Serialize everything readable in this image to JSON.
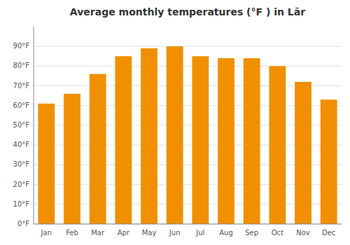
{
  "chart_data": {
    "type": "bar",
    "title": "Average monthly temperatures (°F ) in Lār",
    "categories": [
      "Jan",
      "Feb",
      "Mar",
      "Apr",
      "May",
      "Jun",
      "Jul",
      "Aug",
      "Sep",
      "Oct",
      "Nov",
      "Dec"
    ],
    "values": [
      61,
      66,
      76,
      85,
      89,
      90,
      85,
      84,
      84,
      80,
      72,
      63
    ],
    "color": "#F09000",
    "ylim": [
      0,
      100
    ],
    "yticks": [
      {
        "value": 0,
        "label": "0°F"
      },
      {
        "value": 10,
        "label": "10°F"
      },
      {
        "value": 20,
        "label": "20°F"
      },
      {
        "value": 30,
        "label": "30°F"
      },
      {
        "value": 40,
        "label": "40°F"
      },
      {
        "value": 50,
        "label": "50°F"
      },
      {
        "value": 60,
        "label": "60°F"
      },
      {
        "value": 70,
        "label": "70°F"
      },
      {
        "value": 80,
        "label": "80°F"
      },
      {
        "value": 90,
        "label": "90°F"
      }
    ],
    "grid": true
  }
}
